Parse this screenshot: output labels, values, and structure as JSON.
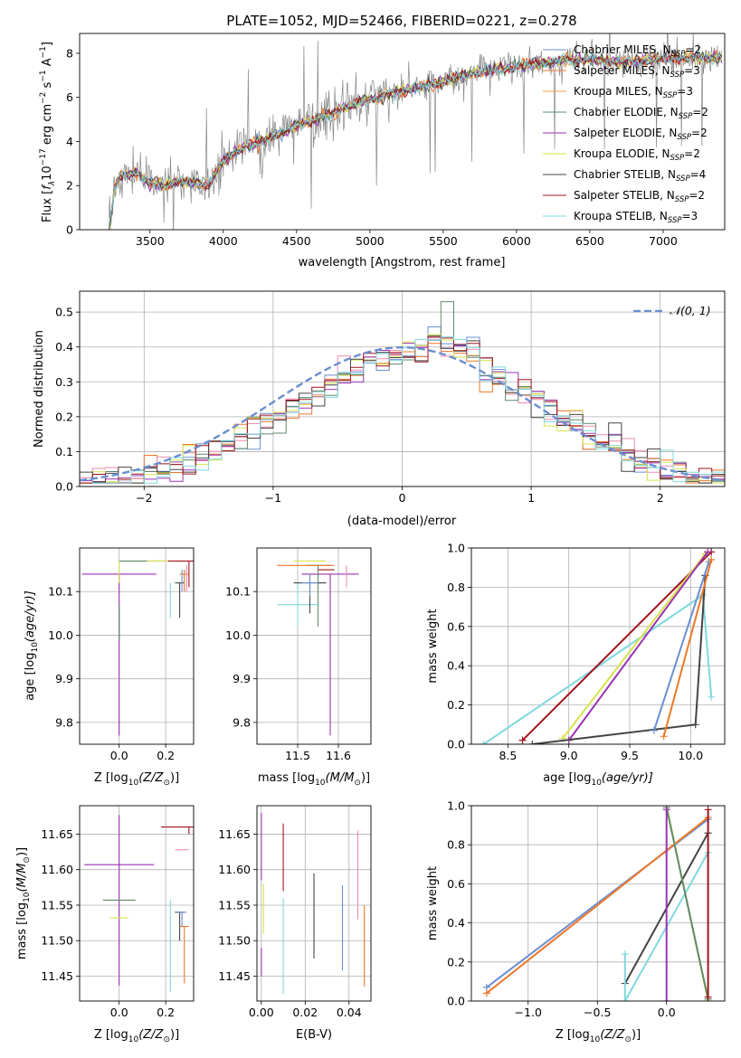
{
  "figure": {
    "title": "PLATE=1052, MJD=52466, FIBERID=0221, z=0.278"
  },
  "colors": {
    "Chabrier MILES": "#6a8fd0",
    "Salpeter MILES": "#ee7728",
    "Kroupa MILES": "#f29d4b",
    "Chabrier ELODIE": "#5f8a6c",
    "Salpeter ELODIE": "#9b32b4",
    "Kroupa ELODIE": "#d8e24c",
    "Chabrier STELIB": "#444444",
    "Salpeter STELIB": "#a0141e",
    "Kroupa STELIB": "#7fd8de",
    "Data spectrum": "#888888",
    "Reference gaussian": "#6a8fd0"
  },
  "chart_data": [
    {
      "id": "spectrum",
      "type": "line",
      "title": "PLATE=1052, MJD=52466, FIBERID=0221, z=0.278",
      "xlabel": "wavelength [Angstrom, rest frame]",
      "ylabel_prefix": "Flux [",
      "ylabel_flambda": "f",
      "ylabel_sub": "λ",
      "ylabel_mid": "10",
      "ylabel_exp": "−17",
      "ylabel_units": " erg cm",
      "ylabel_exp2": "−2",
      "ylabel_s": " s",
      "ylabel_exp3": "−1",
      "ylabel_A": " A",
      "ylabel_exp4": "−1",
      "ylabel_close": "]",
      "xlim": [
        3020,
        7420
      ],
      "ylim": [
        0,
        8.9
      ],
      "xticks": [
        3500,
        4000,
        4500,
        5000,
        5500,
        6000,
        6500,
        7000
      ],
      "yticks": [
        0,
        2,
        4,
        6,
        8
      ],
      "grid": false,
      "legend_position": "top-right",
      "legend_entries": [
        {
          "base": "Chabrier MILES, N",
          "sub": "SSP",
          "tail": "=2",
          "color": "#6a8fd0"
        },
        {
          "base": "Salpeter MILES, N",
          "sub": "SSP",
          "tail": "=3",
          "color": "#ee7728"
        },
        {
          "base": "Kroupa MILES, N",
          "sub": "SSP",
          "tail": "=3",
          "color": "#f29d4b"
        },
        {
          "base": "Chabrier ELODIE, N",
          "sub": "SSP",
          "tail": "=2",
          "color": "#5f8a6c"
        },
        {
          "base": "Salpeter ELODIE, N",
          "sub": "SSP",
          "tail": "=2",
          "color": "#9b32b4"
        },
        {
          "base": "Kroupa ELODIE, N",
          "sub": "SSP",
          "tail": "=2",
          "color": "#d8e24c"
        },
        {
          "base": "Chabrier STELIB, N",
          "sub": "SSP",
          "tail": "=4",
          "color": "#444444"
        },
        {
          "base": "Salpeter STELIB, N",
          "sub": "SSP",
          "tail": "=2",
          "color": "#a0141e"
        },
        {
          "base": "Kroupa STELIB, N",
          "sub": "SSP",
          "tail": "=3",
          "color": "#7fd8de"
        }
      ],
      "series_data_spectrum": {
        "wavelength_start": 3220,
        "wavelength_step": 10,
        "flux_anchor_x": [
          3220,
          3260,
          3300,
          3400,
          3500,
          3600,
          3700,
          3800,
          3900,
          4000,
          4100,
          4300,
          4500,
          4700,
          4900,
          5100,
          5300,
          5500,
          5700,
          5900,
          6100,
          6300,
          6500,
          6700,
          6900,
          7100,
          7300
        ],
        "flux_anchor_y": [
          0,
          1.9,
          2.4,
          2.6,
          2.1,
          2.0,
          2.2,
          2.1,
          2.0,
          3.1,
          3.6,
          4.1,
          4.7,
          5.2,
          5.7,
          6.1,
          6.4,
          6.7,
          7.1,
          7.3,
          7.5,
          7.7,
          7.7,
          7.6,
          7.7,
          7.8,
          7.8
        ]
      }
    },
    {
      "id": "residuals",
      "type": "histogram",
      "xlabel": "(data-model)/error",
      "ylabel": "Normed distribution",
      "xlim": [
        -2.5,
        2.5
      ],
      "ylim": [
        0,
        0.56
      ],
      "xticks": [
        -2,
        -1,
        0,
        1,
        2
      ],
      "yticks": [
        0.0,
        0.1,
        0.2,
        0.3,
        0.4,
        0.5
      ],
      "grid": true,
      "legend_position": "top-right",
      "legend_label": "𝒩(0, 1)",
      "bin_width": 0.1,
      "bin_start": -2.5,
      "reference_curve": "standard normal"
    },
    {
      "id": "age_vs_Z",
      "type": "scatter",
      "xlabel_base": "Z [log",
      "xlabel_sub": "10",
      "xlabel_tail": "(Z/Z",
      "xlabel_end": ")]",
      "ylabel_base": "age  [log",
      "ylabel_sub": "10",
      "ylabel_tail": "(age/yr)]",
      "xlim": [
        -0.17,
        0.32
      ],
      "ylim": [
        9.75,
        10.2
      ],
      "xticks": [
        0.0,
        0.2
      ],
      "yticks": [
        9.8,
        9.9,
        10.0,
        10.1
      ],
      "grid": true,
      "errorbars": [
        {
          "x": 0.0,
          "y": 10.14,
          "xerr": 0.16,
          "yerr": [
            0.37,
            0.0
          ],
          "color": "#9b32b4"
        },
        {
          "x": 0.0,
          "y": 10.07,
          "xerr": 0.0,
          "yerr": [
            0.08,
            0.0
          ],
          "color": "#5f8a6c"
        },
        {
          "x": 0.1,
          "y": 10.17,
          "xerr": 0.1,
          "yerr": [
            0.0,
            0.0
          ],
          "color": "#5f8a6c"
        },
        {
          "x": 0.0,
          "y": 10.17,
          "xerr": 0.0,
          "yerr": [
            0.05,
            0.0
          ],
          "color": "#d8e24c"
        },
        {
          "x": 0.2,
          "y": 10.17,
          "xerr": 0.08,
          "yerr": [
            0.0,
            0.0
          ],
          "color": "#d8e24c"
        },
        {
          "x": 0.3,
          "y": 10.17,
          "xerr": 0.09,
          "yerr": [
            0.06,
            0.0
          ],
          "color": "#a0141e"
        },
        {
          "x": 0.22,
          "y": 10.12,
          "xerr": 0.0,
          "yerr": [
            0.08,
            0.0
          ],
          "color": "#7fd8de"
        },
        {
          "x": 0.26,
          "y": 10.12,
          "xerr": 0.02,
          "yerr": [
            0.08,
            0.0
          ],
          "color": "#444444"
        },
        {
          "x": 0.28,
          "y": 10.14,
          "xerr": 0.02,
          "yerr": [
            0.04,
            0.01
          ],
          "color": "#ee7728"
        },
        {
          "x": 0.29,
          "y": 10.15,
          "xerr": 0.0,
          "yerr": [
            0.05,
            0.01
          ],
          "color": "#f08ab0"
        },
        {
          "x": 0.27,
          "y": 10.13,
          "xerr": 0.0,
          "yerr": [
            0.03,
            0.02
          ],
          "color": "#6a8fd0"
        }
      ]
    },
    {
      "id": "age_vs_mass",
      "type": "scatter",
      "xlabel_base": "mass [log",
      "xlabel_sub": "10",
      "xlabel_tail": "(M/M",
      "xlabel_end": ")]",
      "xlim": [
        11.4,
        11.68
      ],
      "ylim": [
        9.75,
        10.2
      ],
      "xticks": [
        11.5,
        11.6
      ],
      "yticks": [
        9.8,
        9.9,
        10.0,
        10.1
      ],
      "grid": true,
      "errorbars": [
        {
          "x": 11.58,
          "y": 10.14,
          "xerr": 0.07,
          "yerr": [
            0.37,
            0.0
          ],
          "color": "#9b32b4"
        },
        {
          "x": 11.53,
          "y": 10.17,
          "xerr": 0.04,
          "yerr": [
            0.0,
            0.0
          ],
          "color": "#d8e24c"
        },
        {
          "x": 11.55,
          "y": 10.16,
          "xerr": 0.03,
          "yerr": [
            0.14,
            0.0
          ],
          "color": "#5f8a6c"
        },
        {
          "x": 11.57,
          "y": 10.15,
          "xerr": 0.02,
          "yerr": [
            0.0,
            0.0
          ],
          "color": "#a0141e"
        },
        {
          "x": 11.5,
          "y": 10.07,
          "xerr": 0.05,
          "yerr": [
            0.05,
            0.05
          ],
          "color": "#7fd8de"
        },
        {
          "x": 11.53,
          "y": 10.12,
          "xerr": 0.04,
          "yerr": [
            0.07,
            0.0
          ],
          "color": "#444444"
        },
        {
          "x": 11.52,
          "y": 10.16,
          "xerr": 0.07,
          "yerr": [
            0.0,
            0.0
          ],
          "color": "#ee7728"
        },
        {
          "x": 11.62,
          "y": 10.16,
          "xerr": 0.0,
          "yerr": [
            0.05,
            0.0
          ],
          "color": "#f08ab0"
        },
        {
          "x": 11.53,
          "y": 10.12,
          "xerr": 0.02,
          "yerr": [
            0.03,
            0.02
          ],
          "color": "#6a8fd0"
        }
      ]
    },
    {
      "id": "weight_vs_age",
      "type": "line",
      "xlabel_base": "age  [log",
      "xlabel_sub": "10",
      "xlabel_tail": "(age/yr)]",
      "ylabel": "mass weight",
      "xlim": [
        8.2,
        10.28
      ],
      "ylim": [
        0,
        1.0
      ],
      "xticks": [
        8.5,
        9.0,
        9.5,
        10.0
      ],
      "yticks": [
        0.0,
        0.2,
        0.4,
        0.6,
        0.8,
        1.0
      ],
      "grid": true,
      "series": [
        {
          "color": "#7fd8de",
          "x": [
            8.3,
            10.1,
            10.17
          ],
          "y": [
            0.0,
            0.76,
            0.24
          ]
        },
        {
          "color": "#a0141e",
          "x": [
            8.62,
            10.17
          ],
          "y": [
            0.02,
            0.98
          ]
        },
        {
          "color": "#d8e24c",
          "x": [
            8.95,
            10.12
          ],
          "y": [
            0.03,
            0.97
          ]
        },
        {
          "color": "#9b32b4",
          "x": [
            9.0,
            10.14
          ],
          "y": [
            0.02,
            0.98
          ]
        },
        {
          "color": "#444444",
          "x": [
            8.7,
            10.04,
            10.12
          ],
          "y": [
            0.0,
            0.1,
            0.86
          ]
        },
        {
          "color": "#6a8fd0",
          "x": [
            9.7,
            10.15
          ],
          "y": [
            0.07,
            0.93
          ]
        },
        {
          "color": "#ee7728",
          "x": [
            9.78,
            10.17
          ],
          "y": [
            0.04,
            0.94
          ]
        }
      ]
    },
    {
      "id": "mass_vs_Z",
      "type": "scatter",
      "xlabel_base": "Z [log",
      "xlabel_sub": "10",
      "xlabel_tail": "(Z/Z",
      "xlabel_end": ")]",
      "ylabel_base": "mass [log",
      "ylabel_sub": "10",
      "ylabel_tail": "(M/M",
      "ylabel_end": ")]",
      "xlim": [
        -0.17,
        0.32
      ],
      "ylim": [
        11.415,
        11.69
      ],
      "xticks": [
        0.0,
        0.2
      ],
      "yticks": [
        11.45,
        11.5,
        11.55,
        11.6,
        11.65
      ],
      "grid": true,
      "errorbars": [
        {
          "x": 0.0,
          "y": 11.607,
          "xerr": 0.15,
          "yerr": [
            0.17,
            0.07
          ],
          "color": "#9b32b4"
        },
        {
          "x": 0.0,
          "y": 11.557,
          "xerr": 0.07,
          "yerr": [
            0.0,
            0.0
          ],
          "color": "#5f8a6c"
        },
        {
          "x": 0.0,
          "y": 11.532,
          "xerr": 0.04,
          "yerr": [
            0.0,
            0.0
          ],
          "color": "#d8e24c"
        },
        {
          "x": 0.3,
          "y": 11.66,
          "xerr": 0.12,
          "yerr": [
            0.01,
            0.0
          ],
          "color": "#a0141e"
        },
        {
          "x": 0.27,
          "y": 11.628,
          "xerr": 0.03,
          "yerr": [
            0.0,
            0.0
          ],
          "color": "#f08ab0"
        },
        {
          "x": 0.22,
          "y": 11.458,
          "xerr": 0.0,
          "yerr": [
            0.03,
            0.1
          ],
          "color": "#7fd8de"
        },
        {
          "x": 0.26,
          "y": 11.54,
          "xerr": 0.02,
          "yerr": [
            0.04,
            0.0
          ],
          "color": "#444444"
        },
        {
          "x": 0.28,
          "y": 11.52,
          "xerr": 0.02,
          "yerr": [
            0.08,
            0.0
          ],
          "color": "#ee7728"
        },
        {
          "x": 0.27,
          "y": 11.54,
          "xerr": 0.02,
          "yerr": [
            0.02,
            0.0
          ],
          "color": "#6a8fd0"
        }
      ]
    },
    {
      "id": "mass_vs_EBV",
      "type": "scatter",
      "xlabel": "E(B-V)",
      "xlim": [
        -0.002,
        0.05
      ],
      "ylim": [
        11.415,
        11.69
      ],
      "xticks": [
        0.0,
        0.02,
        0.04
      ],
      "yticks": [
        11.45,
        11.5,
        11.55,
        11.6,
        11.65
      ],
      "grid": true,
      "errorbars": [
        {
          "x": 0.0,
          "y": 11.62,
          "xerr": 0.0,
          "yerr": [
            0.035,
            0.06
          ],
          "color": "#9b32b4"
        },
        {
          "x": 0.0,
          "y": 11.47,
          "xerr": 0.0,
          "yerr": [
            0.02,
            0.02
          ],
          "color": "#9b32b4"
        },
        {
          "x": 0.001,
          "y": 11.54,
          "xerr": 0.0,
          "yerr": [
            0.03,
            0.04
          ],
          "color": "#d8e24c"
        },
        {
          "x": 0.01,
          "y": 11.615,
          "xerr": 0.0,
          "yerr": [
            0.045,
            0.05
          ],
          "color": "#a0141e"
        },
        {
          "x": 0.01,
          "y": 11.495,
          "xerr": 0.0,
          "yerr": [
            0.07,
            0.065
          ],
          "color": "#7fd8de"
        },
        {
          "x": 0.024,
          "y": 11.535,
          "xerr": 0.0,
          "yerr": [
            0.06,
            0.06
          ],
          "color": "#444444"
        },
        {
          "x": 0.037,
          "y": 11.518,
          "xerr": 0.0,
          "yerr": [
            0.06,
            0.06
          ],
          "color": "#6a8fd0"
        },
        {
          "x": 0.044,
          "y": 11.595,
          "xerr": 0.0,
          "yerr": [
            0.065,
            0.06
          ],
          "color": "#f08ab0"
        },
        {
          "x": 0.047,
          "y": 11.495,
          "xerr": 0.0,
          "yerr": [
            0.06,
            0.055
          ],
          "color": "#ee7728"
        }
      ]
    },
    {
      "id": "weight_vs_Z",
      "type": "line",
      "xlabel_base": "Z [log",
      "xlabel_sub": "10",
      "xlabel_tail": "(Z/Z",
      "xlabel_end": ")]",
      "ylabel": "mass weight",
      "xlim": [
        -1.41,
        0.42
      ],
      "ylim": [
        0,
        1.0
      ],
      "xticks": [
        -1.0,
        -0.5,
        0.0
      ],
      "yticks": [
        0.0,
        0.2,
        0.4,
        0.6,
        0.8,
        1.0
      ],
      "grid": true,
      "series": [
        {
          "color": "#6a8fd0",
          "x": [
            -1.3,
            0.3
          ],
          "y": [
            0.07,
            0.93
          ]
        },
        {
          "color": "#ee7728",
          "x": [
            -1.3,
            0.3
          ],
          "y": [
            0.04,
            0.94
          ]
        },
        {
          "color": "#444444",
          "x": [
            -0.3,
            0.3
          ],
          "y": [
            0.09,
            0.86
          ]
        },
        {
          "color": "#7fd8de",
          "x": [
            -0.3,
            -0.3,
            0.3
          ],
          "y": [
            0.24,
            0.0,
            0.76
          ]
        },
        {
          "color": "#d8e24c",
          "x": [
            0.0,
            0.3
          ],
          "y": [
            1.0,
            0.0
          ]
        },
        {
          "color": "#5f8a6c",
          "x": [
            0.0,
            0.3
          ],
          "y": [
            0.99,
            0.01
          ]
        },
        {
          "color": "#9b32b4",
          "x": [
            0.0,
            0.0
          ],
          "y": [
            0.98,
            0.0
          ]
        },
        {
          "color": "#a0141e",
          "x": [
            0.3,
            0.3
          ],
          "y": [
            0.98,
            0.02
          ]
        }
      ]
    }
  ]
}
